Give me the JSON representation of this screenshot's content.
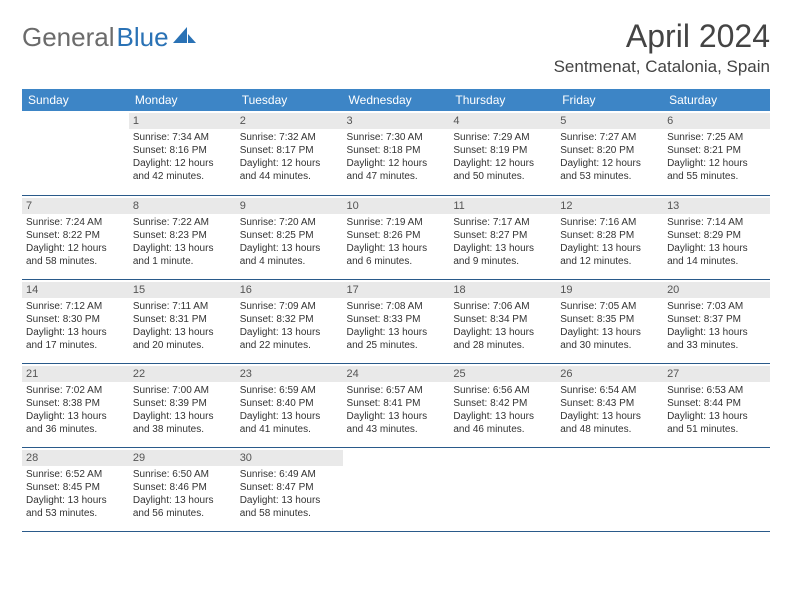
{
  "logo": {
    "part1": "General",
    "part2": "Blue"
  },
  "title": "April 2024",
  "location": "Sentmenat, Catalonia, Spain",
  "colors": {
    "header_bg": "#3d85c6",
    "header_text": "#ffffff",
    "daynum_bg": "#e9e9e9",
    "border": "#2a5a8a",
    "logo_gray": "#6b6b6b",
    "logo_blue": "#2a72b5"
  },
  "weekdays": [
    "Sunday",
    "Monday",
    "Tuesday",
    "Wednesday",
    "Thursday",
    "Friday",
    "Saturday"
  ],
  "weeks": [
    [
      null,
      {
        "n": "1",
        "sr": "Sunrise: 7:34 AM",
        "ss": "Sunset: 8:16 PM",
        "d1": "Daylight: 12 hours",
        "d2": "and 42 minutes."
      },
      {
        "n": "2",
        "sr": "Sunrise: 7:32 AM",
        "ss": "Sunset: 8:17 PM",
        "d1": "Daylight: 12 hours",
        "d2": "and 44 minutes."
      },
      {
        "n": "3",
        "sr": "Sunrise: 7:30 AM",
        "ss": "Sunset: 8:18 PM",
        "d1": "Daylight: 12 hours",
        "d2": "and 47 minutes."
      },
      {
        "n": "4",
        "sr": "Sunrise: 7:29 AM",
        "ss": "Sunset: 8:19 PM",
        "d1": "Daylight: 12 hours",
        "d2": "and 50 minutes."
      },
      {
        "n": "5",
        "sr": "Sunrise: 7:27 AM",
        "ss": "Sunset: 8:20 PM",
        "d1": "Daylight: 12 hours",
        "d2": "and 53 minutes."
      },
      {
        "n": "6",
        "sr": "Sunrise: 7:25 AM",
        "ss": "Sunset: 8:21 PM",
        "d1": "Daylight: 12 hours",
        "d2": "and 55 minutes."
      }
    ],
    [
      {
        "n": "7",
        "sr": "Sunrise: 7:24 AM",
        "ss": "Sunset: 8:22 PM",
        "d1": "Daylight: 12 hours",
        "d2": "and 58 minutes."
      },
      {
        "n": "8",
        "sr": "Sunrise: 7:22 AM",
        "ss": "Sunset: 8:23 PM",
        "d1": "Daylight: 13 hours",
        "d2": "and 1 minute."
      },
      {
        "n": "9",
        "sr": "Sunrise: 7:20 AM",
        "ss": "Sunset: 8:25 PM",
        "d1": "Daylight: 13 hours",
        "d2": "and 4 minutes."
      },
      {
        "n": "10",
        "sr": "Sunrise: 7:19 AM",
        "ss": "Sunset: 8:26 PM",
        "d1": "Daylight: 13 hours",
        "d2": "and 6 minutes."
      },
      {
        "n": "11",
        "sr": "Sunrise: 7:17 AM",
        "ss": "Sunset: 8:27 PM",
        "d1": "Daylight: 13 hours",
        "d2": "and 9 minutes."
      },
      {
        "n": "12",
        "sr": "Sunrise: 7:16 AM",
        "ss": "Sunset: 8:28 PM",
        "d1": "Daylight: 13 hours",
        "d2": "and 12 minutes."
      },
      {
        "n": "13",
        "sr": "Sunrise: 7:14 AM",
        "ss": "Sunset: 8:29 PM",
        "d1": "Daylight: 13 hours",
        "d2": "and 14 minutes."
      }
    ],
    [
      {
        "n": "14",
        "sr": "Sunrise: 7:12 AM",
        "ss": "Sunset: 8:30 PM",
        "d1": "Daylight: 13 hours",
        "d2": "and 17 minutes."
      },
      {
        "n": "15",
        "sr": "Sunrise: 7:11 AM",
        "ss": "Sunset: 8:31 PM",
        "d1": "Daylight: 13 hours",
        "d2": "and 20 minutes."
      },
      {
        "n": "16",
        "sr": "Sunrise: 7:09 AM",
        "ss": "Sunset: 8:32 PM",
        "d1": "Daylight: 13 hours",
        "d2": "and 22 minutes."
      },
      {
        "n": "17",
        "sr": "Sunrise: 7:08 AM",
        "ss": "Sunset: 8:33 PM",
        "d1": "Daylight: 13 hours",
        "d2": "and 25 minutes."
      },
      {
        "n": "18",
        "sr": "Sunrise: 7:06 AM",
        "ss": "Sunset: 8:34 PM",
        "d1": "Daylight: 13 hours",
        "d2": "and 28 minutes."
      },
      {
        "n": "19",
        "sr": "Sunrise: 7:05 AM",
        "ss": "Sunset: 8:35 PM",
        "d1": "Daylight: 13 hours",
        "d2": "and 30 minutes."
      },
      {
        "n": "20",
        "sr": "Sunrise: 7:03 AM",
        "ss": "Sunset: 8:37 PM",
        "d1": "Daylight: 13 hours",
        "d2": "and 33 minutes."
      }
    ],
    [
      {
        "n": "21",
        "sr": "Sunrise: 7:02 AM",
        "ss": "Sunset: 8:38 PM",
        "d1": "Daylight: 13 hours",
        "d2": "and 36 minutes."
      },
      {
        "n": "22",
        "sr": "Sunrise: 7:00 AM",
        "ss": "Sunset: 8:39 PM",
        "d1": "Daylight: 13 hours",
        "d2": "and 38 minutes."
      },
      {
        "n": "23",
        "sr": "Sunrise: 6:59 AM",
        "ss": "Sunset: 8:40 PM",
        "d1": "Daylight: 13 hours",
        "d2": "and 41 minutes."
      },
      {
        "n": "24",
        "sr": "Sunrise: 6:57 AM",
        "ss": "Sunset: 8:41 PM",
        "d1": "Daylight: 13 hours",
        "d2": "and 43 minutes."
      },
      {
        "n": "25",
        "sr": "Sunrise: 6:56 AM",
        "ss": "Sunset: 8:42 PM",
        "d1": "Daylight: 13 hours",
        "d2": "and 46 minutes."
      },
      {
        "n": "26",
        "sr": "Sunrise: 6:54 AM",
        "ss": "Sunset: 8:43 PM",
        "d1": "Daylight: 13 hours",
        "d2": "and 48 minutes."
      },
      {
        "n": "27",
        "sr": "Sunrise: 6:53 AM",
        "ss": "Sunset: 8:44 PM",
        "d1": "Daylight: 13 hours",
        "d2": "and 51 minutes."
      }
    ],
    [
      {
        "n": "28",
        "sr": "Sunrise: 6:52 AM",
        "ss": "Sunset: 8:45 PM",
        "d1": "Daylight: 13 hours",
        "d2": "and 53 minutes."
      },
      {
        "n": "29",
        "sr": "Sunrise: 6:50 AM",
        "ss": "Sunset: 8:46 PM",
        "d1": "Daylight: 13 hours",
        "d2": "and 56 minutes."
      },
      {
        "n": "30",
        "sr": "Sunrise: 6:49 AM",
        "ss": "Sunset: 8:47 PM",
        "d1": "Daylight: 13 hours",
        "d2": "and 58 minutes."
      },
      null,
      null,
      null,
      null
    ]
  ]
}
